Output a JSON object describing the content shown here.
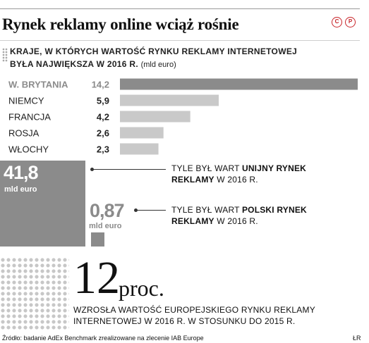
{
  "title": "Rynek reklamy online wciąż rośnie",
  "logo_text": "CP",
  "subtitle": {
    "line1": "Kraje, w których wartość rynku reklamy internetowej",
    "line2": "była największa w 2016 r.",
    "unit": "(mld euro)"
  },
  "chart_data": [
    {
      "type": "bar",
      "orientation": "horizontal",
      "title": "Kraje, w których wartość rynku reklamy internetowej była największa w 2016 r. (mld euro)",
      "categories": [
        "W. BRYTANIA",
        "NIEMCY",
        "FRANCJA",
        "ROSJA",
        "WŁOCHY"
      ],
      "values": [
        14.2,
        5.9,
        4.2,
        2.6,
        2.3
      ],
      "value_labels": [
        "14,2",
        "5,9",
        "4,2",
        "2,6",
        "2,3"
      ],
      "unit": "mld euro",
      "xlim": [
        0,
        14.2
      ],
      "highlight_color": "#8b8b8b",
      "bar_color": "#c9c9c9",
      "grid": false
    },
    {
      "type": "area",
      "subtype": "proportional-squares",
      "items": [
        {
          "label": "Tyle był wart unijny rynek reklamy w 2016 r.",
          "value": 41.8,
          "value_label": "41,8",
          "unit": "mld euro"
        },
        {
          "label": "Tyle był wart polski rynek reklamy w 2016 r.",
          "value": 0.87,
          "value_label": "0,87",
          "unit": "mld euro"
        }
      ],
      "color": "#8b8b8b"
    }
  ],
  "eu": {
    "value": "41,8",
    "unit": "mld euro",
    "note_a": "Tyle był wart ",
    "note_b": "unijny rynek reklamy",
    "note_c": " w 2016 r."
  },
  "pl": {
    "value": "0,87",
    "unit": "mld euro",
    "note_a": "Tyle był wart ",
    "note_b": "polski rynek reklamy",
    "note_c": "  w 2016 r."
  },
  "growth": {
    "value": "12",
    "unit": "proc.",
    "text": "Wzrosła wartość europejskiego rynku reklamy internetowej w 2016 r. w stosunku do 2015 r."
  },
  "source": "Źródło: badanie AdEx Benchmark zrealizowane na zlecenie IAB Europe",
  "author": "ŁR",
  "colors": {
    "highlight": "#8b8b8b",
    "bar": "#c9c9c9",
    "logo": "#c8262b"
  }
}
